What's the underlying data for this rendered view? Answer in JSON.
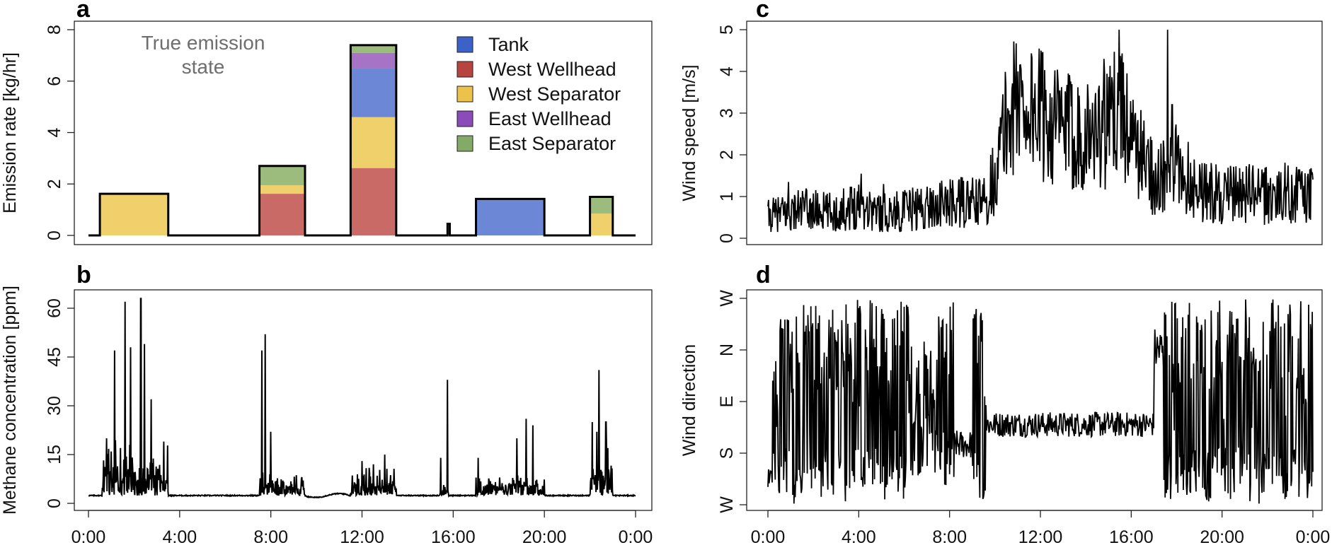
{
  "colors": {
    "tank": "#6b87d6",
    "west_wellhead": "#c96a66",
    "west_separator": "#f0d06a",
    "east_wellhead": "#a673c7",
    "east_separator": "#9bbc7d",
    "tank_legend": "#3a62c9",
    "west_wellhead_legend": "#b8443f",
    "west_separator_legend": "#edc24a",
    "east_wellhead_legend": "#8b4bb8",
    "east_separator_legend": "#83aa66",
    "line": "#000000",
    "annotation": "#6e6e6e"
  },
  "x_ticks": [
    "0:00",
    "4:00",
    "8:00",
    "12:00",
    "16:00",
    "20:00",
    "0:00"
  ],
  "chart_data": [
    {
      "panel": "a",
      "type": "bar",
      "ylabel": "Emission rate [kg/hr]",
      "yticks": [
        "0",
        "2",
        "4",
        "6",
        "8"
      ],
      "ylim": [
        0,
        8
      ],
      "xlim_hours": [
        0,
        24
      ],
      "annotation": [
        "True emission",
        "state"
      ],
      "legend": [
        "Tank",
        "West Wellhead",
        "West Separator",
        "East Wellhead",
        "East Separator"
      ],
      "legend_position": "top-right",
      "series_order": [
        "West Wellhead",
        "West Separator",
        "Tank",
        "East Wellhead",
        "East Separator"
      ],
      "segments": [
        {
          "start": 0.5,
          "end": 3.5,
          "West Wellhead": 0,
          "West Separator": 1.62,
          "Tank": 0,
          "East Wellhead": 0,
          "East Separator": 0
        },
        {
          "start": 7.5,
          "end": 9.5,
          "West Wellhead": 1.62,
          "West Separator": 0.33,
          "Tank": 0,
          "East Wellhead": 0,
          "East Separator": 0.75
        },
        {
          "start": 11.5,
          "end": 13.5,
          "West Wellhead": 2.62,
          "West Separator": 1.98,
          "Tank": 1.9,
          "East Wellhead": 0.6,
          "East Separator": 0.3
        },
        {
          "start": 15.75,
          "end": 15.85,
          "West Wellhead": 0,
          "West Separator": 0,
          "Tank": 0.45,
          "East Wellhead": 0,
          "East Separator": 0
        },
        {
          "start": 17.0,
          "end": 20.0,
          "West Wellhead": 0,
          "West Separator": 0,
          "Tank": 1.42,
          "East Wellhead": 0,
          "East Separator": 0
        },
        {
          "start": 22.0,
          "end": 23.0,
          "West Wellhead": 0,
          "West Separator": 0.85,
          "Tank": 0,
          "East Wellhead": 0,
          "East Separator": 0.65
        }
      ]
    },
    {
      "panel": "b",
      "type": "line",
      "ylabel": "Methane concentration [ppm]",
      "yticks": [
        "0",
        "15",
        "30",
        "45",
        "60"
      ],
      "ylim": [
        0,
        65
      ],
      "xlim_hours": [
        0,
        24
      ],
      "baseline": 2.4,
      "activity": [
        {
          "start": 0.6,
          "end": 3.5,
          "mean": 9,
          "peaks": [
            [
              1.15,
              47
            ],
            [
              1.6,
              62
            ],
            [
              1.85,
              48
            ],
            [
              2.3,
              63
            ],
            [
              2.45,
              49
            ],
            [
              2.75,
              32
            ],
            [
              3.3,
              19
            ],
            [
              0.8,
              20
            ]
          ]
        },
        {
          "start": 7.5,
          "end": 9.5,
          "mean": 4,
          "peaks": [
            [
              7.6,
              47
            ],
            [
              7.75,
              52
            ],
            [
              8.0,
              22
            ]
          ]
        },
        {
          "start": 11.5,
          "end": 13.5,
          "mean": 5,
          "peaks": [
            [
              12.0,
              13
            ],
            [
              13.0,
              15
            ],
            [
              12.5,
              12
            ]
          ]
        },
        {
          "start": 15.4,
          "end": 15.8,
          "mean": 2,
          "peaks": [
            [
              15.45,
              14
            ],
            [
              15.75,
              38
            ]
          ]
        },
        {
          "start": 17.0,
          "end": 20.0,
          "mean": 3.5,
          "peaks": [
            [
              17.1,
              14
            ],
            [
              18.8,
              20
            ],
            [
              19.2,
              26
            ],
            [
              19.5,
              24
            ]
          ]
        },
        {
          "start": 22.0,
          "end": 23.0,
          "mean": 8,
          "peaks": [
            [
              22.1,
              25
            ],
            [
              22.4,
              41
            ],
            [
              22.7,
              25
            ],
            [
              22.3,
              22
            ]
          ]
        }
      ]
    },
    {
      "panel": "c",
      "type": "line",
      "ylabel": "Wind speed [m/s]",
      "yticks": [
        "0",
        "1",
        "2",
        "3",
        "4",
        "5"
      ],
      "ylim": [
        0,
        5
      ],
      "xlim_hours": [
        0,
        24
      ],
      "envelope": [
        [
          0,
          0.5
        ],
        [
          1.5,
          0.7
        ],
        [
          3,
          0.6
        ],
        [
          4,
          0.85
        ],
        [
          5,
          0.6
        ],
        [
          6.5,
          0.7
        ],
        [
          7.5,
          0.8
        ],
        [
          8.5,
          0.85
        ],
        [
          9.5,
          0.85
        ],
        [
          10,
          1.5
        ],
        [
          10.5,
          2.8
        ],
        [
          11,
          3.3
        ],
        [
          12,
          3.0
        ],
        [
          13,
          2.6
        ],
        [
          14,
          2.5
        ],
        [
          15,
          2.6
        ],
        [
          15.5,
          3.5
        ],
        [
          16,
          2.3
        ],
        [
          17.0,
          1.5
        ],
        [
          17.5,
          1.4
        ],
        [
          18,
          1.7
        ],
        [
          19,
          1.2
        ],
        [
          20,
          1.0
        ],
        [
          21,
          1.1
        ],
        [
          22,
          1.0
        ],
        [
          23,
          1.1
        ],
        [
          24,
          1.0
        ]
      ],
      "spikes": [
        [
          0.9,
          1.35
        ],
        [
          4.1,
          1.55
        ],
        [
          5.1,
          1.3
        ],
        [
          11.1,
          4.15
        ],
        [
          14.8,
          4.3
        ],
        [
          17.6,
          5.0
        ],
        [
          17.8,
          3.2
        ]
      ]
    },
    {
      "panel": "d",
      "type": "line",
      "ylabel": "Wind direction",
      "yticks": [
        "W",
        "S",
        "E",
        "N",
        "W"
      ],
      "ylim": [
        0,
        360
      ],
      "xlim_hours": [
        0,
        24
      ],
      "regimes": [
        {
          "start": 0.0,
          "end": 0.2,
          "mode": "steady",
          "center": 50,
          "spread": 20
        },
        {
          "start": 0.2,
          "end": 6.2,
          "mode": "erratic"
        },
        {
          "start": 6.2,
          "end": 7.5,
          "mode": "mixed",
          "center": 170,
          "spread": 120
        },
        {
          "start": 7.5,
          "end": 8.2,
          "mode": "erratic"
        },
        {
          "start": 8.2,
          "end": 9.0,
          "mode": "steady",
          "center": 105,
          "spread": 25
        },
        {
          "start": 9.0,
          "end": 9.6,
          "mode": "erratic"
        },
        {
          "start": 9.6,
          "end": 17.0,
          "mode": "steady",
          "center": 140,
          "spread": 22
        },
        {
          "start": 17.0,
          "end": 17.4,
          "mode": "steady",
          "center": 270,
          "spread": 40
        },
        {
          "start": 17.4,
          "end": 24.0,
          "mode": "erratic"
        }
      ]
    }
  ]
}
